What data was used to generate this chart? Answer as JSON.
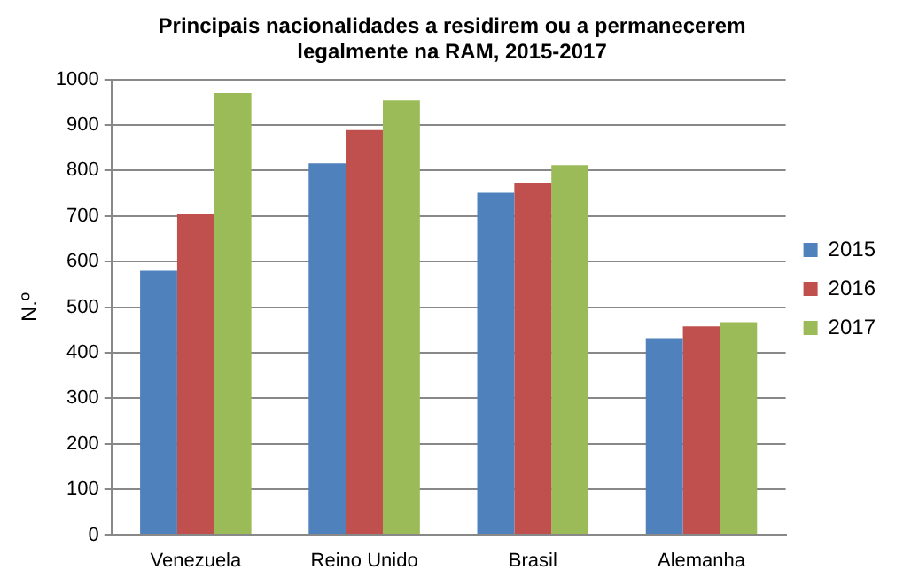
{
  "chart_data": {
    "type": "bar",
    "title": "Principais nacionalidades a residirem ou a permanecerem legalmente na RAM, 2015-2017",
    "ylabel": "N.º",
    "categories": [
      "Venezuela",
      "Reino Unido",
      "Brasil",
      "Alemanha"
    ],
    "series": [
      {
        "name": "2015",
        "color": "#4f81bd",
        "values": [
          580,
          816,
          751,
          432
        ]
      },
      {
        "name": "2016",
        "color": "#c0504d",
        "values": [
          705,
          889,
          773,
          458
        ]
      },
      {
        "name": "2017",
        "color": "#9bbb59",
        "values": [
          970,
          954,
          812,
          467
        ]
      }
    ],
    "ylim": [
      0,
      1000
    ],
    "yticks": [
      0,
      100,
      200,
      300,
      400,
      500,
      600,
      700,
      800,
      900,
      1000
    ],
    "grid": "y",
    "legend": "right"
  }
}
